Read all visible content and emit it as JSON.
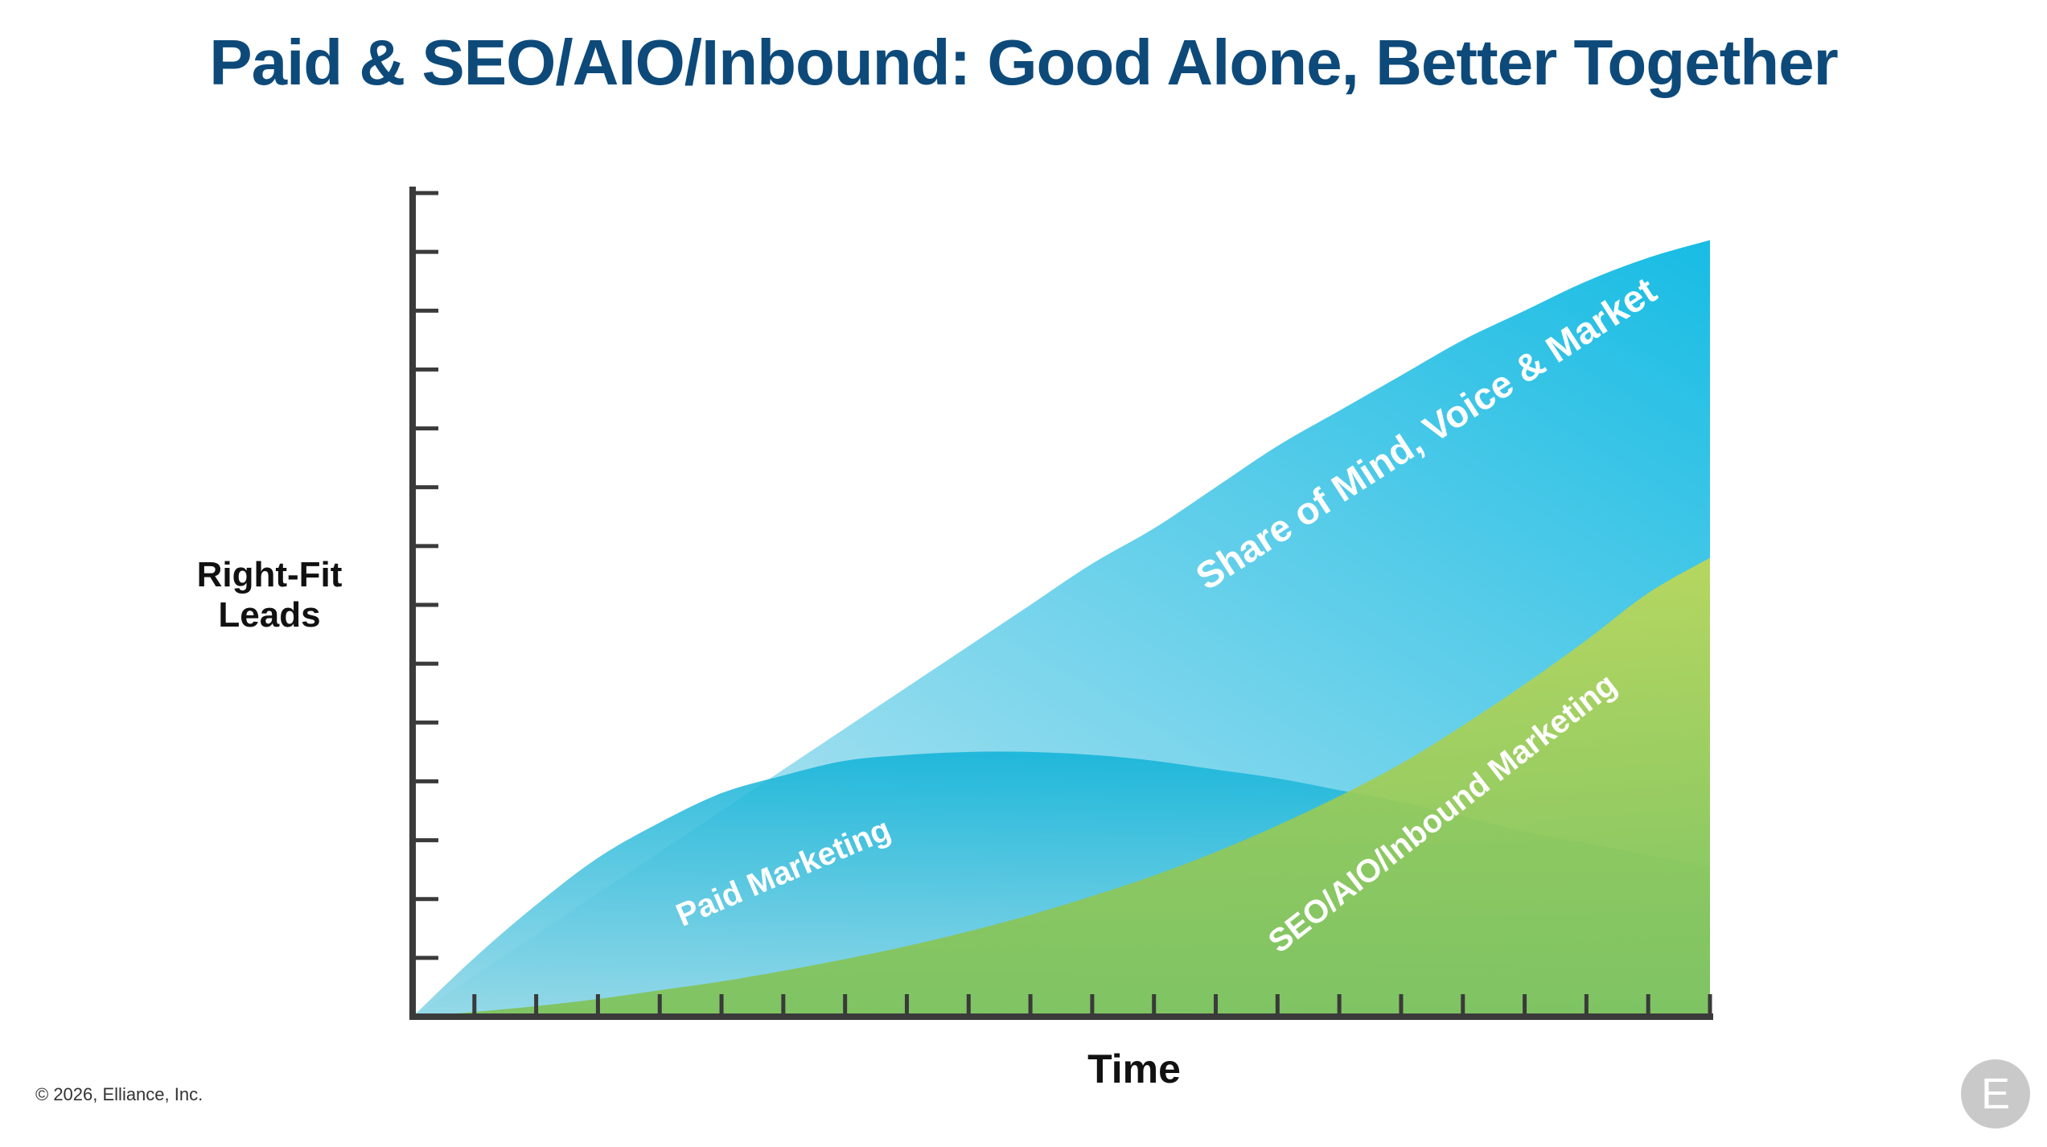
{
  "slide": {
    "title": "Paid & SEO/AIO/Inbound: Good Alone, Better Together",
    "copyright": "© 2026, Elliance, Inc.",
    "logo_icon": "elliance-e-logo"
  },
  "chart_data": {
    "type": "area",
    "title": "Paid & SEO/AIO/Inbound: Good Alone, Better Together",
    "xlabel": "Time",
    "ylabel": "Right-Fit Leads",
    "x": [
      0,
      1,
      2,
      3,
      4,
      5,
      6,
      7,
      8,
      9,
      10,
      11,
      12,
      13,
      14,
      15,
      16,
      17,
      18,
      19,
      20,
      21
    ],
    "xlim": [
      0,
      21
    ],
    "ylim": [
      0,
      14
    ],
    "x_ticks": 21,
    "y_ticks": 14,
    "grid": false,
    "series": [
      {
        "name": "Share of Mind, Voice & Market",
        "values": [
          0,
          0.7,
          1.4,
          2.1,
          2.8,
          3.5,
          4.2,
          4.9,
          5.6,
          6.3,
          7.0,
          7.7,
          8.3,
          9.0,
          9.7,
          10.3,
          10.9,
          11.5,
          12.0,
          12.5,
          12.9,
          13.2
        ],
        "color_top": "#18bce4",
        "color_bottom": "#d4ecf3"
      },
      {
        "name": "Paid Marketing",
        "values": [
          0,
          1.0,
          1.9,
          2.7,
          3.3,
          3.8,
          4.1,
          4.35,
          4.45,
          4.5,
          4.5,
          4.45,
          4.35,
          4.2,
          4.05,
          3.85,
          3.65,
          3.4,
          3.15,
          2.95,
          2.75,
          2.55
        ],
        "color_top": "#12b3d8",
        "color_bottom": "#8dd6e6"
      },
      {
        "name": "SEO/AIO/Inbound Marketing",
        "values": [
          0,
          0.08,
          0.18,
          0.3,
          0.45,
          0.6,
          0.78,
          0.98,
          1.2,
          1.45,
          1.73,
          2.05,
          2.4,
          2.8,
          3.25,
          3.75,
          4.3,
          4.95,
          5.65,
          6.4,
          7.2,
          7.8
        ],
        "color_top": "#c8d94a",
        "color_bottom": "#7cc04e"
      }
    ],
    "annotations": [
      "Share of Mind, Voice & Market",
      "Paid Marketing",
      "SEO/AIO/Inbound Marketing"
    ],
    "colors": {
      "axis": "#3a3a3a",
      "title": "#0d4a7a",
      "annotation_text": "#ffffff"
    }
  }
}
